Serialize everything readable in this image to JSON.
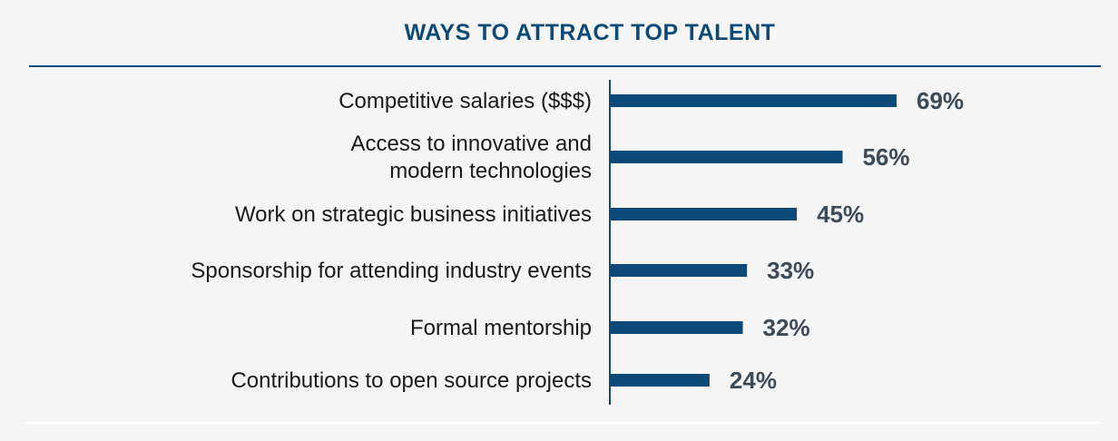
{
  "title": "WAYS TO ATTRACT TOP TALENT",
  "colors": {
    "bar": "#0e4a78",
    "title": "#0e4a78",
    "value_label": "#3d4a57",
    "background": "#f5f5f5"
  },
  "chart_data": {
    "type": "bar",
    "orientation": "horizontal",
    "title": "WAYS TO ATTRACT TOP TALENT",
    "categories": [
      [
        "Competitive salaries ($$$)"
      ],
      [
        "Access to innovative and",
        "modern technologies"
      ],
      [
        "Work on strategic business initiatives"
      ],
      [
        "Sponsorship for attending industry events"
      ],
      [
        "Formal mentorship"
      ],
      [
        "Contributions to open source projects"
      ]
    ],
    "values": [
      69,
      56,
      45,
      33,
      32,
      24
    ],
    "value_labels": [
      "69%",
      "56%",
      "45%",
      "33%",
      "32%",
      "24%"
    ],
    "xlim": [
      0,
      100
    ],
    "grid": false,
    "legend": "none"
  }
}
